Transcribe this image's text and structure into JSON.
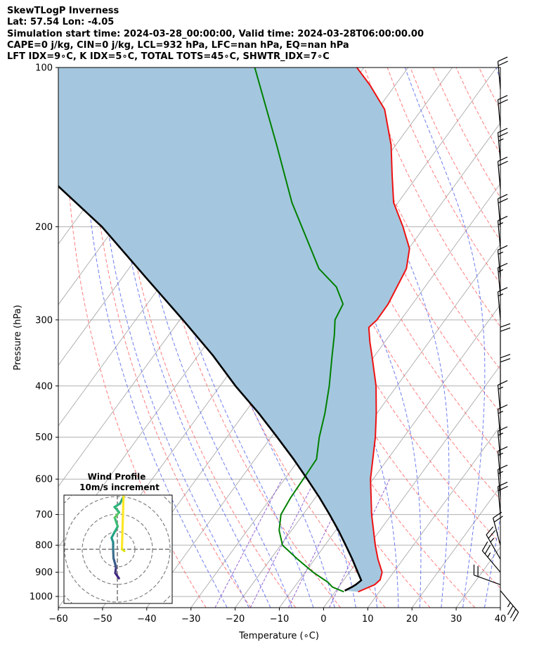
{
  "header": {
    "line1": "SkewTLogP Inverness",
    "line2": "Lat: 57.54   Lon: -4.05",
    "line3": "Simulation start time: 2024-03-28_00:00:00, Valid time: 2024-03-28T06:00:00.00",
    "line4": "CAPE=0 j/kg, CIN=0 j/kg, LCL=932 hPa, LFC=nan hPa, EQ=nan hPa",
    "line5": "LFT IDX=9∘C, K IDX=5∘C, TOTAL TOTS=45∘C, SHWTR_IDX=7∘C"
  },
  "colors": {
    "temperature": "#ee1111",
    "dewpoint": "#008000",
    "parcel": "#000000",
    "cape_fill": "#a4c7df",
    "dry_adiabat": "#ff6666",
    "moist_adiabat": "#5566ee",
    "mixing_ratio": "#8855cc",
    "isotherm": "#aaaaaa"
  },
  "chart_data": {
    "type": "line",
    "title": "",
    "xlabel": "Temperature (∘C)",
    "ylabel": "Pressure (hPa)",
    "x_range": [
      -60,
      40
    ],
    "y_range_hpa": [
      1050,
      100
    ],
    "y_scale": "log",
    "grid": true,
    "x_ticks": [
      "−60",
      "−50",
      "−40",
      "−30",
      "−20",
      "−10",
      "0",
      "10",
      "20",
      "30",
      "40"
    ],
    "y_ticks": [
      "1000",
      "900",
      "800",
      "700",
      "600",
      "500",
      "400",
      "300",
      "200",
      "100"
    ],
    "series": [
      {
        "key": "temperature",
        "pressure": [
          980,
          950,
          930,
          900,
          850,
          800,
          700,
          600,
          500,
          450,
          400,
          350,
          330,
          310,
          300,
          280,
          240,
          220,
          200,
          180,
          160,
          140,
          120,
          108,
          100
        ],
        "values": [
          5.2,
          7.8,
          8.2,
          7.4,
          4.3,
          1.4,
          -4.5,
          -10.6,
          -16.4,
          -20.2,
          -24.7,
          -30.7,
          -33.4,
          -36.0,
          -35.4,
          -35.5,
          -37.2,
          -39.8,
          -44.9,
          -51.0,
          -55.8,
          -61.1,
          -68.4,
          -75.7,
          -81.6
        ]
      },
      {
        "key": "dewpoint",
        "pressure": [
          980,
          960,
          940,
          900,
          850,
          800,
          750,
          700,
          650,
          600,
          550,
          500,
          450,
          400,
          350,
          320,
          300,
          280,
          260,
          240,
          180,
          140,
          100
        ],
        "values": [
          2.0,
          -1.4,
          -3.2,
          -8.2,
          -13.9,
          -19.6,
          -22.8,
          -25.0,
          -25.6,
          -25.8,
          -26.1,
          -29.1,
          -31.8,
          -35.3,
          -39.7,
          -42.6,
          -44.9,
          -45.7,
          -50.0,
          -57.0,
          -74.0,
          -87.0,
          -104.7
        ]
      },
      {
        "key": "parcel",
        "pressure": [
          975,
          960,
          950,
          932,
          900,
          850,
          800,
          750,
          700,
          650,
          600,
          550,
          500,
          450,
          400,
          350,
          300,
          250,
          200,
          150,
          120,
          100
        ],
        "values": [
          2.0,
          3.0,
          3.5,
          4.0,
          1.9,
          -1.5,
          -5.3,
          -9.4,
          -14.0,
          -19.1,
          -24.9,
          -31.3,
          -38.6,
          -46.8,
          -56.5,
          -66.7,
          -79.3,
          -94.5,
          -113.0,
          -140.0,
          -163.0,
          -183.0
        ]
      }
    ],
    "annotations": {
      "filled_area": "between parcel and temperature",
      "background_lines": [
        "isotherms",
        "dry adiabats",
        "moist adiabats",
        "mixing ratio lines"
      ]
    }
  },
  "wind_profile": {
    "title": "Wind Profile",
    "subtitle": "10m/s increment",
    "rings_ms": [
      10,
      20,
      30,
      40
    ],
    "hodograph": [
      {
        "u": 0.9,
        "v": -16.5,
        "color": "#3b0f70"
      },
      {
        "u": -1.2,
        "v": -13.5,
        "color": "#41237f"
      },
      {
        "u": -0.8,
        "v": -10.5,
        "color": "#463480"
      },
      {
        "u": -1.2,
        "v": -8.5,
        "color": "#464e8c"
      },
      {
        "u": -2.2,
        "v": -5.0,
        "color": "#3b5b8c"
      },
      {
        "u": -2.4,
        "v": 0.0,
        "color": "#3b6d8c"
      },
      {
        "u": -2.4,
        "v": 4.0,
        "color": "#2e7f8e"
      },
      {
        "u": -3.3,
        "v": 6.5,
        "color": "#21908c"
      },
      {
        "u": -1.5,
        "v": 10.0,
        "color": "#22a285"
      },
      {
        "u": 0.2,
        "v": 13.0,
        "color": "#2ab07f"
      },
      {
        "u": -1.5,
        "v": 18.0,
        "color": "#3bbb75"
      },
      {
        "u": 1.0,
        "v": 21.0,
        "color": "#5ec962"
      },
      {
        "u": 0.2,
        "v": 22.0,
        "color": "#35b779"
      },
      {
        "u": -1.6,
        "v": 24.0,
        "color": "#35b779"
      },
      {
        "u": 1.5,
        "v": 26.0,
        "color": "#2fb47c"
      },
      {
        "u": 3.5,
        "v": 30.0,
        "color": "#2fa87e"
      },
      {
        "u": 2.6,
        "v": 0.0,
        "color": "#fde725"
      },
      {
        "u": 4.0,
        "v": -1.0,
        "color": "#dde318"
      }
    ]
  },
  "wind_barbs": [
    {
      "p": 975,
      "speed": 35,
      "dir": 140
    },
    {
      "p": 950,
      "speed": 20,
      "dir": 290
    },
    {
      "p": 900,
      "speed": 25,
      "dir": 320
    },
    {
      "p": 850,
      "speed": 25,
      "dir": 330
    },
    {
      "p": 800,
      "speed": 20,
      "dir": 345
    },
    {
      "p": 700,
      "speed": 20,
      "dir": 355
    },
    {
      "p": 650,
      "speed": 15,
      "dir": 355
    },
    {
      "p": 600,
      "speed": 15,
      "dir": 355
    },
    {
      "p": 550,
      "speed": 15,
      "dir": 355
    },
    {
      "p": 500,
      "speed": 15,
      "dir": 355
    },
    {
      "p": 450,
      "speed": 15,
      "dir": 355
    },
    {
      "p": 400,
      "speed": 20,
      "dir": 0
    },
    {
      "p": 350,
      "speed": 20,
      "dir": 0
    },
    {
      "p": 300,
      "speed": 15,
      "dir": 355
    },
    {
      "p": 270,
      "speed": 15,
      "dir": 355
    },
    {
      "p": 250,
      "speed": 15,
      "dir": 355
    },
    {
      "p": 220,
      "speed": 15,
      "dir": 355
    },
    {
      "p": 200,
      "speed": 20,
      "dir": 355
    },
    {
      "p": 170,
      "speed": 20,
      "dir": 355
    },
    {
      "p": 150,
      "speed": 25,
      "dir": 355
    },
    {
      "p": 130,
      "speed": 20,
      "dir": 355
    },
    {
      "p": 110,
      "speed": 20,
      "dir": 355
    }
  ]
}
